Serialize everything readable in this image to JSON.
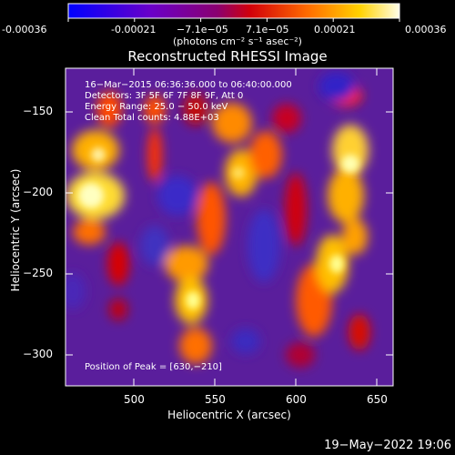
{
  "colorbar": {
    "ticks": [
      "-0.00036",
      "-0.00021",
      "−7.1e−05",
      "7.1e−05",
      "0.00021",
      "0.00036"
    ],
    "unit": "(photons cm⁻² s⁻¹ asec⁻²)",
    "range": [
      -0.00036,
      0.00036
    ],
    "colors": [
      "#0000ff",
      "#7a00b4",
      "#b4005a",
      "#ff1e00",
      "#ffa000",
      "#ffff80",
      "#ffffff"
    ]
  },
  "title": "Reconstructed RHESSI Image",
  "overlay": {
    "line1": "16−Mar−2015 06:36:36.000 to 06:40:00.000",
    "line2": "Detectors: 3F 5F 6F 7F 8F 9F, Att 0",
    "line3": "Energy Range: 25.0 − 50.0 keV",
    "line4": "Clean     Total counts: 4.88E+03",
    "peak": "Position of Peak = [630,−210]"
  },
  "axes": {
    "xlabel": "Heliocentric X (arcsec)",
    "ylabel": "Heliocentric Y (arcsec)",
    "xticks": [
      "500",
      "550",
      "600",
      "650"
    ],
    "yticks": [
      "−150",
      "−200",
      "−250",
      "−300"
    ],
    "xrange": [
      460,
      650
    ],
    "yrange": [
      -320,
      -125
    ]
  },
  "footer_date": "19−May−2022 19:06"
}
